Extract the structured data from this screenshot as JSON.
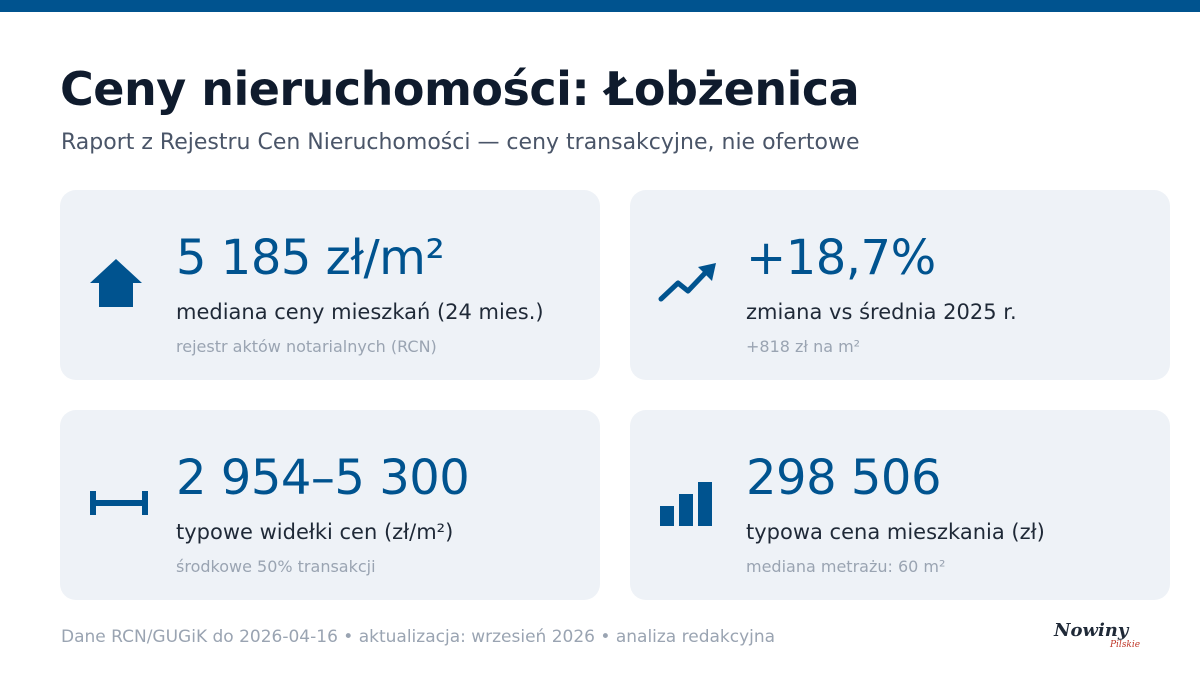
{
  "header": {
    "title": "Ceny nieruchomości: Łobżenica",
    "subtitle": "Raport z Rejestru Cen Nieruchomości — ceny transakcyjne, nie ofertowe"
  },
  "cards": [
    {
      "icon": "house-icon",
      "value": "5 185 zł/m²",
      "label": "mediana ceny mieszkań (24 mies.)",
      "note": "rejestr aktów notarialnych (RCN)"
    },
    {
      "icon": "trend-up-icon",
      "value": "+18,7%",
      "label": "zmiana vs średnia 2025 r.",
      "note": "+818 zł na m²"
    },
    {
      "icon": "range-icon",
      "value": "2 954–5 300",
      "label": "typowe widełki cen (zł/m²)",
      "note": "środkowe 50% transakcji"
    },
    {
      "icon": "bar-chart-icon",
      "value": "298 506",
      "label": "typowa cena mieszkania (zł)",
      "note": "mediana metrażu: 60 m²"
    }
  ],
  "footer": {
    "text": "Dane RCN/GUGiK do 2026-04-16 • aktualizacja: wrzesień 2026 • analiza redakcyjna"
  },
  "logo": {
    "main": "Nowiny",
    "sub": "Pilskie"
  },
  "colors": {
    "accent": "#00538f",
    "card_bg": "#eef2f7",
    "title": "#0f1b2d",
    "muted": "#9aa4b2"
  }
}
